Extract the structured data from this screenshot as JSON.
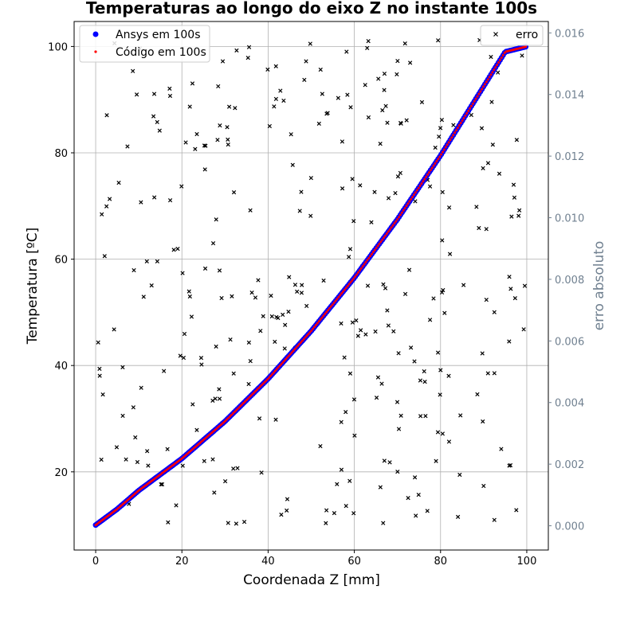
{
  "chart_data": {
    "type": "scatter",
    "title": "Temperaturas ao longo do eixo Z no instante 100s",
    "xlabel": "Coordenada Z [mm]",
    "ylabel": "Temperatura [ºC]",
    "y2label": "erro absoluto",
    "xlim": [
      -5,
      105
    ],
    "ylim": [
      5.3,
      104.7
    ],
    "y2lim": [
      -0.000787,
      0.01637
    ],
    "xticks": [
      "0",
      "20",
      "40",
      "60",
      "80",
      "100"
    ],
    "yticks": [
      "20",
      "40",
      "60",
      "80",
      "100"
    ],
    "y2ticks": [
      "0.000",
      "0.002",
      "0.004",
      "0.006",
      "0.008",
      "0.010",
      "0.012",
      "0.014",
      "0.016"
    ],
    "grid": true,
    "legend_left_position": "upper-left",
    "legend_right_position": "upper-right",
    "temperature_curve": {
      "x": [
        0,
        5,
        10,
        15,
        20,
        25,
        30,
        35,
        40,
        45,
        50,
        55,
        60,
        65,
        70,
        75,
        80,
        85,
        90,
        95,
        100
      ],
      "y": [
        10,
        13,
        16.5,
        19.5,
        22.5,
        26,
        29.5,
        33.5,
        37.5,
        42,
        46.5,
        51.5,
        56.5,
        62,
        67.5,
        73.5,
        79.5,
        86,
        92.5,
        99,
        100
      ]
    },
    "series": [
      {
        "name": "Ansys em 100s",
        "color": "#0000ff",
        "marker": "circle",
        "axis": "left"
      },
      {
        "name": "Código em 100s",
        "color": "#ff0000",
        "marker": "point",
        "axis": "left"
      },
      {
        "name": "erro",
        "color": "#000000",
        "marker": "x",
        "axis": "right",
        "note": "approximately 320 scattered error points between 0.000 and 0.016"
      }
    ],
    "colors": {
      "right_axis": "#708090",
      "grid": "#b0b0b0"
    }
  }
}
